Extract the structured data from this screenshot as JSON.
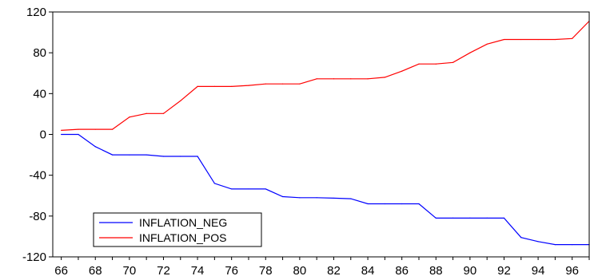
{
  "chart_data": {
    "type": "line",
    "title": "",
    "xlabel": "",
    "ylabel": "",
    "x": [
      66,
      67,
      68,
      69,
      70,
      71,
      72,
      73,
      74,
      75,
      76,
      77,
      78,
      79,
      80,
      81,
      82,
      83,
      84,
      85,
      86,
      87,
      88,
      89,
      90,
      91,
      92,
      93,
      94,
      95,
      96,
      97
    ],
    "x_tick_labels": [
      "66",
      "68",
      "70",
      "72",
      "74",
      "76",
      "78",
      "80",
      "82",
      "84",
      "86",
      "88",
      "90",
      "92",
      "94",
      "96"
    ],
    "xlim": [
      65.5,
      97
    ],
    "ylim": [
      -120,
      120
    ],
    "y_tick_labels": [
      "120",
      "80",
      "40",
      "0",
      "-40",
      "-80",
      "-120"
    ],
    "grid": false,
    "legend_position": "bottom-left",
    "series": [
      {
        "name": "INFLATION_NEG",
        "color": "#0000ff",
        "values": [
          0,
          0,
          -12,
          -20,
          -20,
          -20,
          -21.5,
          -21.5,
          -21.5,
          -48,
          -53.5,
          -53.5,
          -53.5,
          -61,
          -62,
          -62,
          -62.5,
          -63,
          -68,
          -68,
          -68,
          -68,
          -82,
          -82,
          -82,
          -82,
          -82,
          -101,
          -105,
          -108,
          -108,
          -108
        ]
      },
      {
        "name": "INFLATION_POS",
        "color": "#ff0000",
        "values": [
          4,
          5,
          5,
          5,
          17,
          20.5,
          20.5,
          33,
          47,
          47,
          47,
          48,
          49.5,
          49.5,
          49.5,
          54.5,
          54.5,
          54.5,
          54.5,
          56,
          62,
          69,
          69,
          70.5,
          80,
          88.5,
          93,
          93,
          93,
          93,
          94,
          111
        ]
      }
    ]
  }
}
